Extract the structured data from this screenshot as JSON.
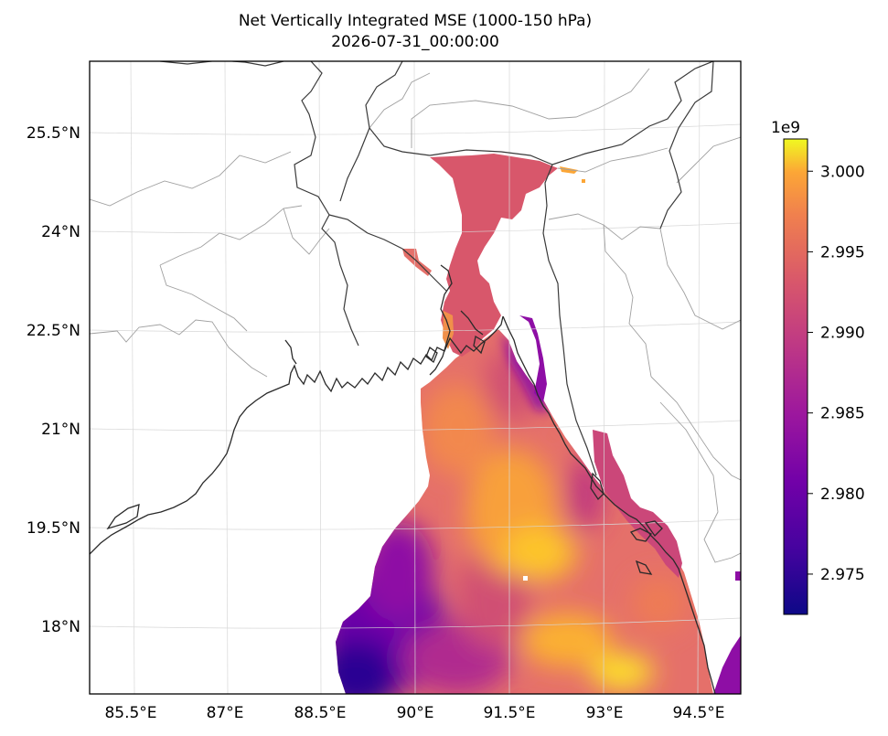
{
  "figure": {
    "title_line1": "Net Vertically Integrated MSE (1000-150 hPa)",
    "title_line2": "2026-07-31_00:00:00"
  },
  "map": {
    "x_ticks": [
      "85.5°E",
      "87°E",
      "88.5°E",
      "90°E",
      "91.5°E",
      "93°E",
      "94.5°E"
    ],
    "y_ticks": [
      "25.5°N",
      "24°N",
      "22.5°N",
      "21°N",
      "19.5°N",
      "18°N"
    ],
    "gridlines": true
  },
  "colorbar": {
    "colormap": "plasma",
    "exponent_label": "1e9",
    "ticks": [
      "3.000",
      "2.995",
      "2.990",
      "2.985",
      "2.980",
      "2.975"
    ],
    "vmin": 2.9725,
    "vmax": 3.002
  }
}
